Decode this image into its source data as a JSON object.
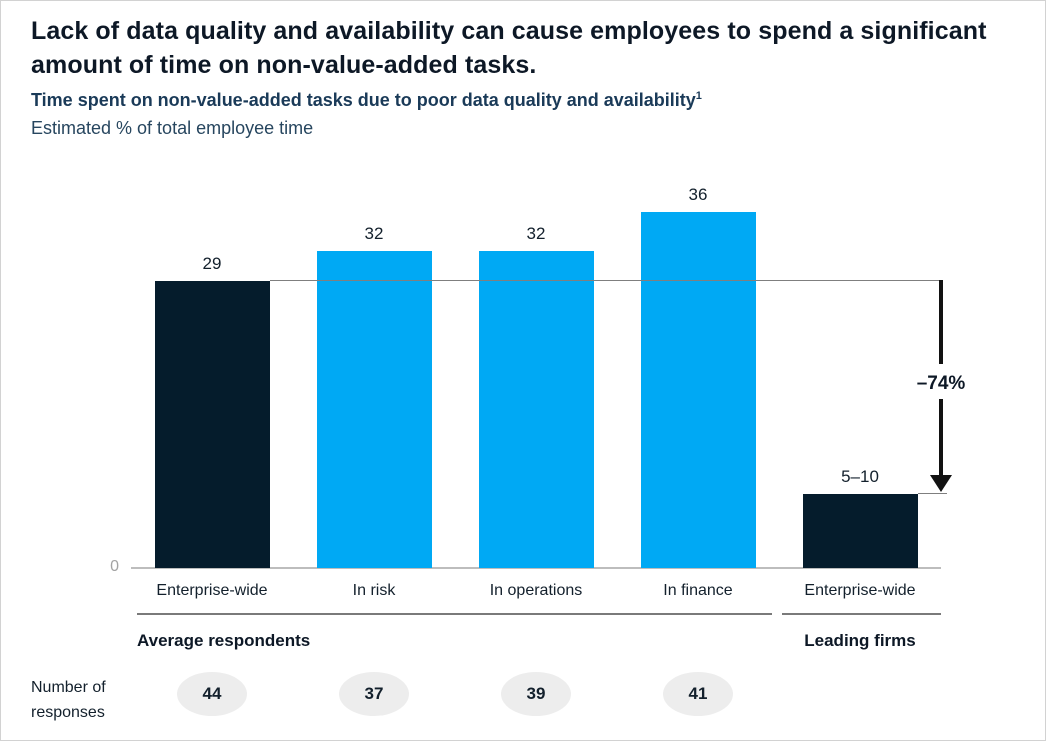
{
  "page": {
    "title": "Lack of data quality and availability can cause employees to spend a significant amount of time on non-value-added tasks."
  },
  "kicker": {
    "text": "Time spent on non-value-added tasks due to poor data quality and availability",
    "footnote_marker": "1"
  },
  "unit_line": "Estimated % of total employee time",
  "axis": {
    "zero_label": "0"
  },
  "annotation": {
    "delta_label": "–74%"
  },
  "groups": {
    "average_label": "Average respondents",
    "leading_label": "Leading firms"
  },
  "responses": {
    "label_line1": "Number of",
    "label_line2": "responses"
  },
  "colors": {
    "navy": "#051C2C",
    "blue": "#00A9F4",
    "badge_bg": "#EDEDED"
  },
  "chart_data": {
    "type": "bar",
    "title": "Time spent on non-value-added tasks due to poor data quality and availability",
    "ylabel": "Estimated % of total employee time",
    "categories": [
      "Enterprise-wide",
      "In risk",
      "In operations",
      "In finance",
      "Enterprise-wide"
    ],
    "values": [
      29,
      32,
      32,
      36,
      7.5
    ],
    "value_labels": [
      "29",
      "32",
      "32",
      "36",
      "5–10"
    ],
    "bar_colors": [
      "#051C2C",
      "#00A9F4",
      "#00A9F4",
      "#00A9F4",
      "#051C2C"
    ],
    "groups": [
      {
        "label": "Average respondents",
        "category_indexes": [
          0,
          1,
          2,
          3
        ]
      },
      {
        "label": "Leading firms",
        "category_indexes": [
          4
        ]
      }
    ],
    "annotation": {
      "label": "–74%",
      "from_value": 29,
      "to_label": "5–10"
    },
    "ylim": [
      0,
      40
    ],
    "grid": false,
    "axis_zero_label": "0",
    "number_of_responses": [
      44,
      37,
      39,
      41
    ]
  }
}
